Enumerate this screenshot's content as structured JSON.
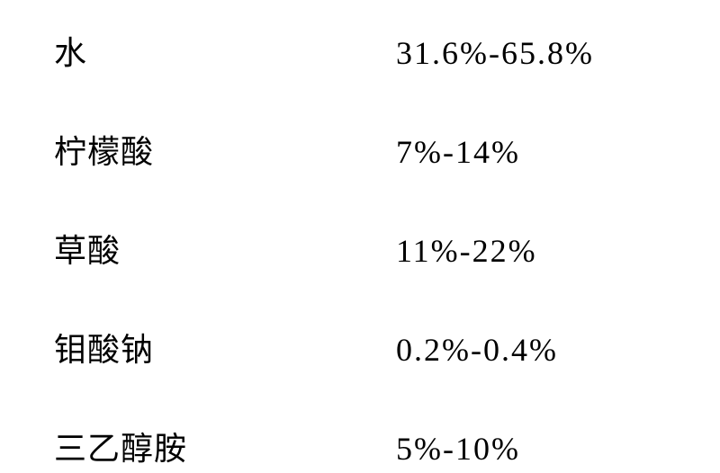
{
  "table": {
    "rows": [
      {
        "label": "水",
        "value": "31.6%-65.8%"
      },
      {
        "label": "柠檬酸",
        "value": "7%-14%"
      },
      {
        "label": "草酸",
        "value": "11%-22%"
      },
      {
        "label": "钼酸钠",
        "value": "0.2%-0.4%"
      },
      {
        "label": "三乙醇胺",
        "value": "5%-10%"
      }
    ],
    "background_color": "#ffffff",
    "text_color": "#000000",
    "font_size": 36,
    "font_family": "SimSun"
  }
}
